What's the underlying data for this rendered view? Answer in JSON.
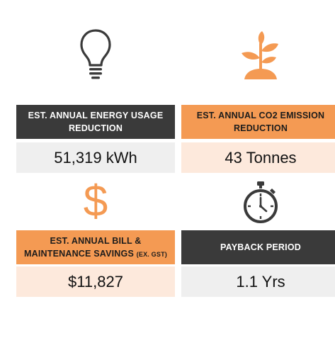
{
  "cards": [
    {
      "icon": "lightbulb-icon",
      "header_line1": "EST. ANNUAL ENERGY USAGE",
      "header_line2": "REDUCTION",
      "value": "51,319 kWh"
    },
    {
      "icon": "seedling-icon",
      "header_line1": "EST. ANNUAL CO2 EMISSION",
      "header_line2": "REDUCTION",
      "value": "43 Tonnes"
    },
    {
      "icon": "dollar-icon",
      "header_line1": "EST. ANNUAL BILL &",
      "header_line2": "MAINTENANCE SAVINGS",
      "header_note": "(EX. GST)",
      "value": "$11,827"
    },
    {
      "icon": "stopwatch-icon",
      "header_line1": "PAYBACK PERIOD",
      "value": "1.1 Yrs"
    }
  ],
  "colors": {
    "dark_header": "#3a3a3a",
    "orange_header": "#f49a53",
    "grey_value": "#efefef",
    "peach_value": "#fde9dc",
    "icon_dark": "#3a3a3a",
    "icon_orange": "#f49a53"
  },
  "dollar_glyph": "$"
}
